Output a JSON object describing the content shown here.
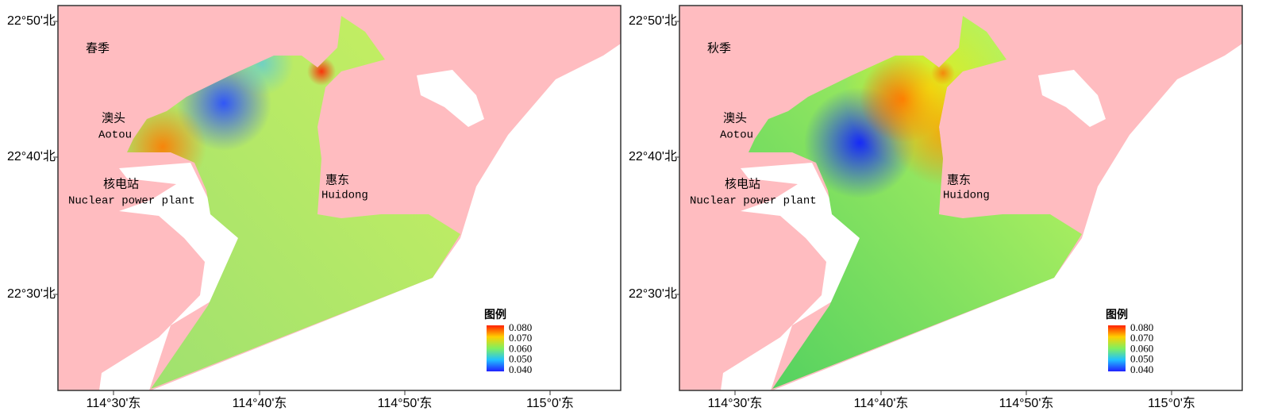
{
  "panels": [
    {
      "season": "春季",
      "places": [
        "澳头",
        "Aotou",
        "核电站",
        "Nuclear power plant",
        "惠东",
        "Huidong"
      ],
      "legend": {
        "title": "图例",
        "values": [
          "0.080",
          "0.070",
          "0.060",
          "0.050",
          "0.040"
        ]
      }
    },
    {
      "season": "秋季",
      "places": [
        "澳头",
        "Aotou",
        "核电站",
        "Nuclear power plant",
        "惠东",
        "Huidong"
      ],
      "legend": {
        "title": "图例",
        "values": [
          "0.080",
          "0.070",
          "0.060",
          "0.050",
          "0.040"
        ]
      }
    }
  ],
  "lat_labels": [
    "22°50'北",
    "22°40'北",
    "22°30'北"
  ],
  "lon_labels": [
    "114°30'东",
    "114°40'东",
    "114°50'东",
    "115°0'东"
  ]
}
